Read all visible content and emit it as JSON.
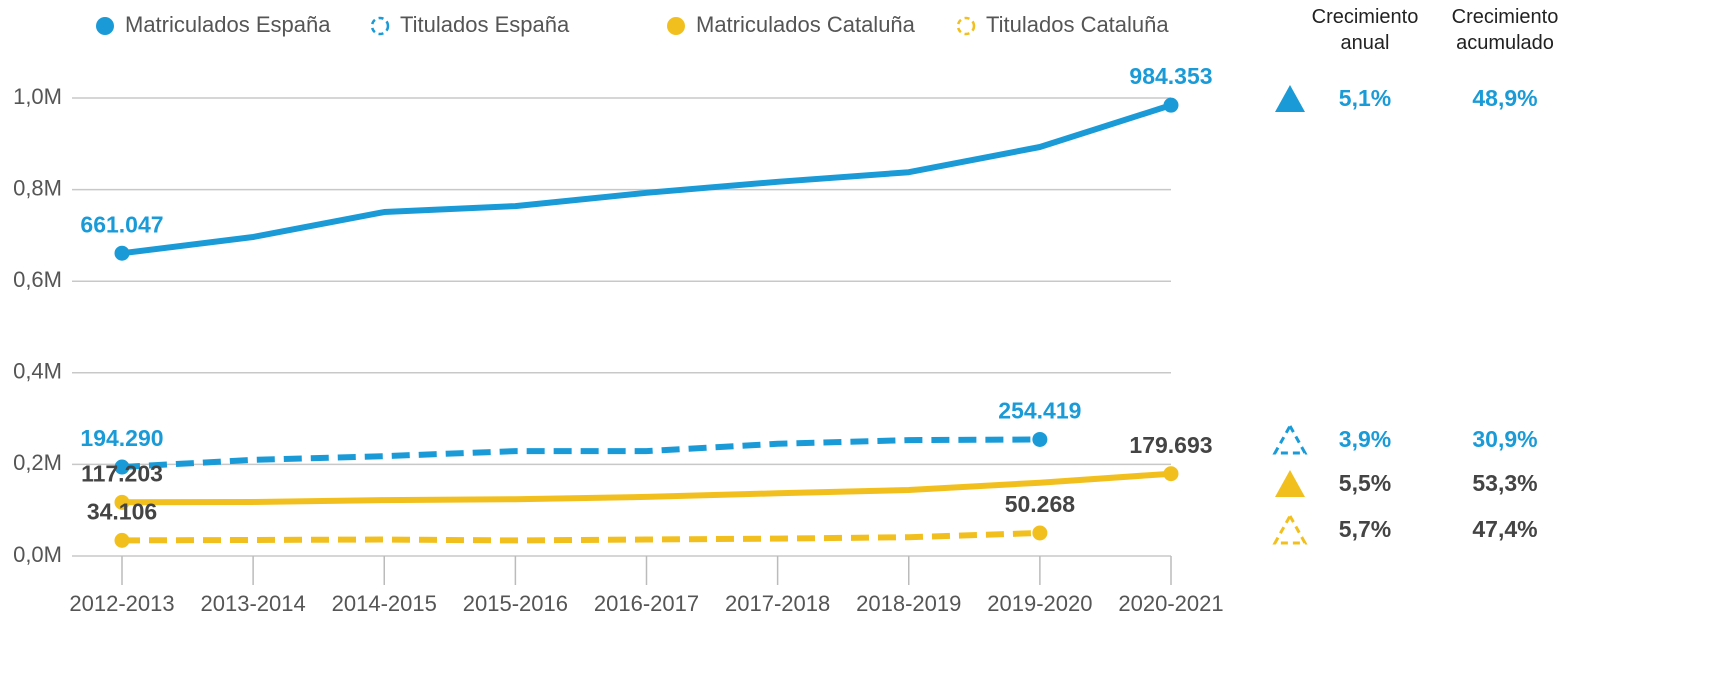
{
  "chart_data": {
    "type": "line",
    "categories": [
      "2012-2013",
      "2013-2014",
      "2014-2015",
      "2015-2016",
      "2016-2017",
      "2017-2018",
      "2018-2019",
      "2019-2020",
      "2020-2021"
    ],
    "ylim": [
      0,
      1000000
    ],
    "yticks": [
      {
        "value": 0,
        "label": "0,0M"
      },
      {
        "value": 200000,
        "label": "0,2M"
      },
      {
        "value": 400000,
        "label": "0,4M"
      },
      {
        "value": 600000,
        "label": "0,6M"
      },
      {
        "value": 800000,
        "label": "0,8M"
      },
      {
        "value": 1000000,
        "label": "1,0M"
      }
    ],
    "grid": true,
    "growth_headers": [
      "Crecimiento anual",
      "Crecimiento acumulado"
    ],
    "series": [
      {
        "name": "Matriculados España",
        "color": "#1a9bd7",
        "dash": false,
        "label_color": "#1a9bd7",
        "values": [
          661047,
          696500,
          751000,
          764000,
          793000,
          817000,
          838000,
          893000,
          984353
        ],
        "value_labels": [
          "661.047",
          null,
          null,
          null,
          null,
          null,
          null,
          null,
          "984.353"
        ],
        "annual_growth": "5,1%",
        "cumulative_growth": "48,9%"
      },
      {
        "name": "Titulados España",
        "color": "#1a9bd7",
        "dash": true,
        "label_color": "#1a9bd7",
        "values": [
          194290,
          210000,
          218000,
          229000,
          229000,
          245000,
          253000,
          254419,
          null
        ],
        "value_labels": [
          "194.290",
          null,
          null,
          null,
          null,
          null,
          null,
          "254.419",
          null
        ],
        "annual_growth": "3,9%",
        "cumulative_growth": "30,9%"
      },
      {
        "name": "Matriculados Cataluña",
        "color": "#f2c01e",
        "dash": false,
        "label_color": "#444444",
        "values": [
          117203,
          118000,
          122000,
          124000,
          129000,
          137000,
          144000,
          160000,
          179693
        ],
        "value_labels": [
          "117.203",
          null,
          null,
          null,
          null,
          null,
          null,
          null,
          "179.693"
        ],
        "annual_growth": "5,5%",
        "cumulative_growth": "53,3%"
      },
      {
        "name": "Titulados Cataluña",
        "color": "#f2c01e",
        "dash": true,
        "label_color": "#444444",
        "values": [
          34106,
          35000,
          36000,
          34000,
          36000,
          38000,
          41000,
          50268,
          null
        ],
        "value_labels": [
          "34.106",
          null,
          null,
          null,
          null,
          null,
          null,
          "50.268",
          null
        ],
        "annual_growth": "5,7%",
        "cumulative_growth": "47,4%"
      }
    ]
  }
}
